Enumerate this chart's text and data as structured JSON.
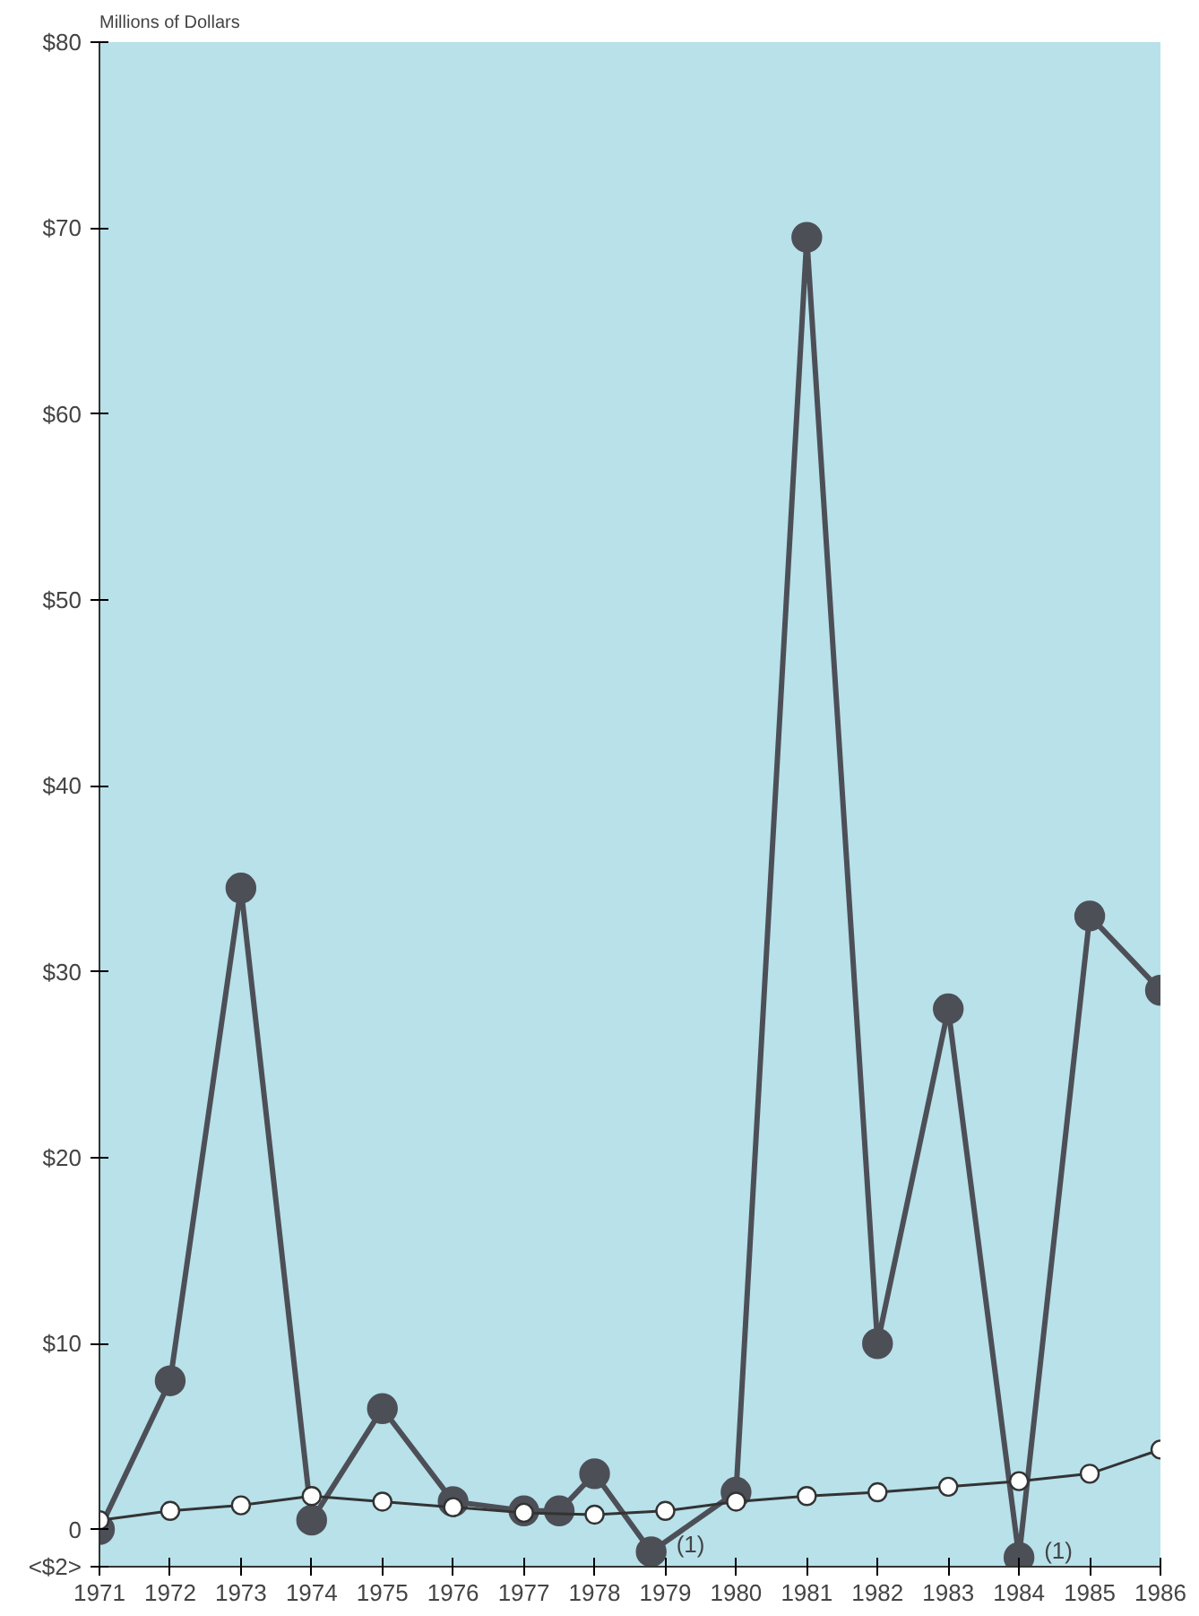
{
  "chart_data": {
    "type": "line",
    "title": "Millions of Dollars",
    "marker": "circle",
    "grid": false,
    "x": [
      1971,
      1972,
      1973,
      1974,
      1975,
      1976,
      1977,
      1977.5,
      1978,
      1978.8,
      1980,
      1981,
      1982,
      1983,
      1984,
      1985,
      1986
    ],
    "series": [
      {
        "color": "#4d4f57",
        "values": [
          0,
          8,
          34.5,
          0.5,
          6.5,
          1.5,
          1,
          1,
          3,
          -1.2,
          2,
          69.5,
          10,
          28,
          -1.5,
          33,
          29
        ]
      },
      {
        "color": "#ffffff",
        "x": [
          1971,
          1972,
          1973,
          1974,
          1975,
          1976,
          1977,
          1978,
          1979,
          1980,
          1981,
          1982,
          1983,
          1984,
          1985,
          1986
        ],
        "values": [
          0.5,
          1,
          1.3,
          1.8,
          1.5,
          1.2,
          0.9,
          0.8,
          1,
          1.5,
          1.8,
          2,
          2.3,
          2.6,
          3,
          4.3
        ]
      }
    ],
    "xlim": [
      1971,
      1986
    ],
    "xticks": [
      1971,
      1972,
      1973,
      1974,
      1975,
      1976,
      1977,
      1978,
      1979,
      1980,
      1981,
      1982,
      1983,
      1984,
      1985,
      1986
    ],
    "ylim": [
      -2,
      80
    ],
    "yticks": [
      {
        "value": -2,
        "label": "<$2>"
      },
      0,
      {
        "value": 10,
        "label": "$10"
      },
      {
        "value": 20,
        "label": "$20"
      },
      {
        "value": 30,
        "label": "$30"
      },
      {
        "value": 40,
        "label": "$40"
      },
      {
        "value": 50,
        "label": "$50"
      },
      {
        "value": 60,
        "label": "$60"
      },
      {
        "value": 70,
        "label": "$70"
      },
      {
        "value": 80,
        "label": "$80"
      }
    ],
    "annotations": [
      {
        "text": "(1)",
        "x": 1978.8,
        "y": -1.2
      },
      {
        "text": "(1)",
        "x": 1984,
        "y": -1.5
      }
    ]
  }
}
